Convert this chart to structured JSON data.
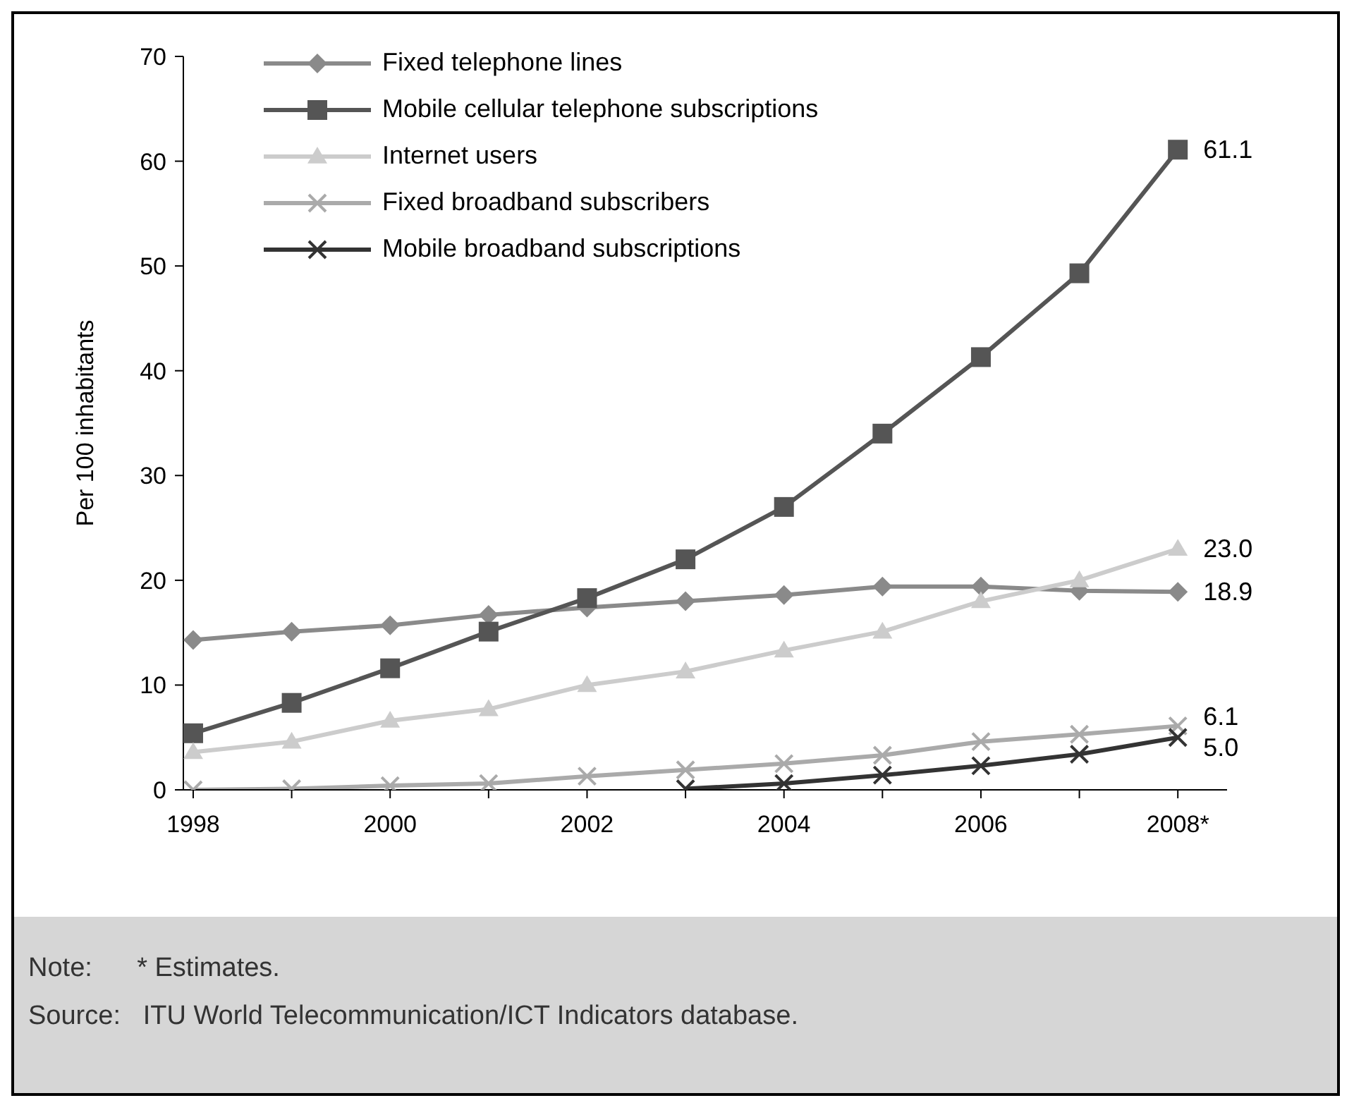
{
  "chart_data": {
    "type": "line",
    "ylabel": "Per 100 inhabitants",
    "x": [
      1998,
      1999,
      2000,
      2001,
      2002,
      2003,
      2004,
      2005,
      2006,
      2007,
      2008
    ],
    "xlim": [
      1997.9,
      2008.5
    ],
    "xticks": [
      1998,
      {
        "value": 1999,
        "label": null
      },
      2000,
      {
        "value": 2001,
        "label": null
      },
      2002,
      {
        "value": 2003,
        "label": null
      },
      2004,
      {
        "value": 2005,
        "label": null
      },
      2006,
      {
        "value": 2007,
        "label": null
      },
      {
        "value": 2008,
        "label": "2008*"
      }
    ],
    "ylim": [
      0,
      70
    ],
    "yticks": [
      0,
      10,
      20,
      30,
      40,
      50,
      60,
      70
    ],
    "grid": false,
    "legend": "top left",
    "line_style": "solid",
    "series": [
      {
        "name": "Fixed telephone lines",
        "color": "#8a8a8a",
        "marker": "diamond",
        "values": [
          14.3,
          15.1,
          15.7,
          16.7,
          17.4,
          18.0,
          18.6,
          19.4,
          19.4,
          19.0,
          18.9
        ],
        "value_labels": [
          null,
          null,
          null,
          null,
          null,
          null,
          null,
          null,
          null,
          null,
          "18.9"
        ]
      },
      {
        "name": "Mobile cellular telephone subscriptions",
        "color": "#555555",
        "marker": "square",
        "values": [
          5.4,
          8.3,
          11.6,
          15.1,
          18.3,
          22.0,
          27.0,
          34.0,
          41.3,
          49.3,
          61.1
        ],
        "value_labels": [
          null,
          null,
          null,
          null,
          null,
          null,
          null,
          null,
          null,
          null,
          "61.1"
        ]
      },
      {
        "name": "Internet users",
        "color": "#cccccc",
        "marker": "triangle",
        "values": [
          3.6,
          4.6,
          6.6,
          7.7,
          10.0,
          11.3,
          13.3,
          15.1,
          18.0,
          20.0,
          23.0
        ],
        "value_labels": [
          null,
          null,
          null,
          null,
          null,
          null,
          null,
          null,
          null,
          null,
          "23.0"
        ]
      },
      {
        "name": "Fixed broadband subscribers",
        "color": "#aaaaaa",
        "marker": "cross",
        "values": [
          0.0,
          0.1,
          0.4,
          0.6,
          1.3,
          1.9,
          2.5,
          3.3,
          4.6,
          5.3,
          6.1
        ],
        "value_labels": [
          null,
          null,
          null,
          null,
          null,
          null,
          null,
          null,
          null,
          null,
          "6.1"
        ]
      },
      {
        "name": "Mobile broadband subscriptions",
        "color": "#333333",
        "marker": "cross",
        "values": [
          null,
          null,
          null,
          null,
          null,
          0.1,
          0.6,
          1.4,
          2.3,
          3.4,
          5.0
        ],
        "value_labels": [
          null,
          null,
          null,
          null,
          null,
          null,
          null,
          null,
          null,
          null,
          "5.0"
        ]
      }
    ],
    "annotations": [
      "Note:      * Estimates.",
      "Source:   ITU World Telecommunication/ICT Indicators database."
    ]
  }
}
